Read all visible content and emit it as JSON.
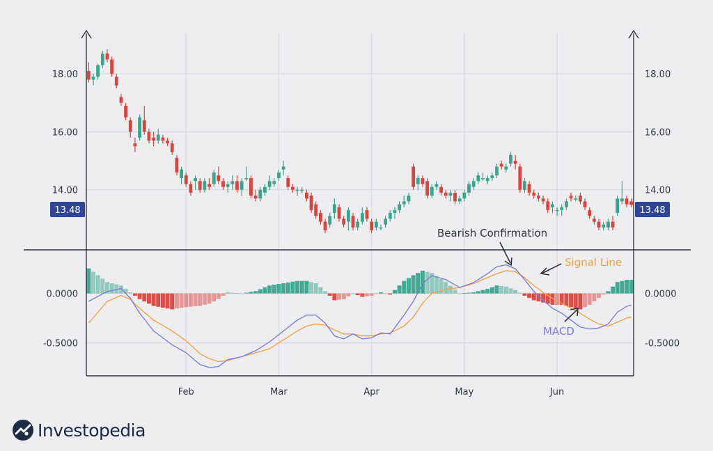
{
  "brand": {
    "name": "Investopedia",
    "logo_icon": "investopedia-logo-icon"
  },
  "chart_data": [
    {
      "type": "candlestick",
      "panel": "price",
      "yticks": [
        14.0,
        16.0,
        18.0
      ],
      "ytick_labels": [
        "14.00",
        "16.00",
        "18.00"
      ],
      "ylim": [
        12.0,
        19.3
      ],
      "last_price_label": "13.48",
      "last_price": 13.48,
      "grid": true,
      "colors": {
        "up": "#3aa48c",
        "down": "#d9443f",
        "price_tag": "#2f4596"
      },
      "x_ticks": [
        "Feb",
        "Mar",
        "Apr",
        "May",
        "Jun"
      ],
      "x_tick_index": [
        21,
        41,
        61,
        81,
        101
      ],
      "candles": [
        [
          18.1,
          18.4,
          17.7,
          17.8
        ],
        [
          17.8,
          18.0,
          17.6,
          17.9
        ],
        [
          17.9,
          18.35,
          17.8,
          18.3
        ],
        [
          18.3,
          18.8,
          18.2,
          18.7
        ],
        [
          18.7,
          18.85,
          18.4,
          18.5
        ],
        [
          18.5,
          18.6,
          17.9,
          18.0
        ],
        [
          17.9,
          18.0,
          17.5,
          17.6
        ],
        [
          17.2,
          17.3,
          16.9,
          17.0
        ],
        [
          16.9,
          17.0,
          16.4,
          16.5
        ],
        [
          16.4,
          16.5,
          15.8,
          16.0
        ],
        [
          15.6,
          15.8,
          15.3,
          15.5
        ],
        [
          15.8,
          16.6,
          15.7,
          16.5
        ],
        [
          16.4,
          16.9,
          15.9,
          16.0
        ],
        [
          16.0,
          16.1,
          15.6,
          15.7
        ],
        [
          15.8,
          16.0,
          15.5,
          15.7
        ],
        [
          15.7,
          16.1,
          15.6,
          15.9
        ],
        [
          15.8,
          15.9,
          15.6,
          15.7
        ],
        [
          15.7,
          15.8,
          15.5,
          15.6
        ],
        [
          15.6,
          15.7,
          15.2,
          15.3
        ],
        [
          15.1,
          15.2,
          14.5,
          14.6
        ],
        [
          14.4,
          14.8,
          14.2,
          14.7
        ],
        [
          14.5,
          14.6,
          14.1,
          14.2
        ],
        [
          14.2,
          14.3,
          13.8,
          13.9
        ],
        [
          14.3,
          14.5,
          14.0,
          14.4
        ],
        [
          14.3,
          14.4,
          13.9,
          14.0
        ],
        [
          14.0,
          14.4,
          13.9,
          14.3
        ],
        [
          14.2,
          14.4,
          14.0,
          14.1
        ],
        [
          14.2,
          14.7,
          14.1,
          14.6
        ],
        [
          14.5,
          14.8,
          14.2,
          14.3
        ],
        [
          14.3,
          14.4,
          14.0,
          14.1
        ],
        [
          14.1,
          14.3,
          13.9,
          14.2
        ],
        [
          14.2,
          14.5,
          14.0,
          14.3
        ],
        [
          14.3,
          14.5,
          13.9,
          14.0
        ],
        [
          14.0,
          14.4,
          13.8,
          14.3
        ],
        [
          14.4,
          14.8,
          14.3,
          14.4
        ],
        [
          14.4,
          14.5,
          13.7,
          13.8
        ],
        [
          13.8,
          14.0,
          13.6,
          13.7
        ],
        [
          13.7,
          14.1,
          13.6,
          14.0
        ],
        [
          13.9,
          14.2,
          13.8,
          14.1
        ],
        [
          14.1,
          14.5,
          14.0,
          14.3
        ],
        [
          14.2,
          14.4,
          14.1,
          14.3
        ],
        [
          14.4,
          14.7,
          14.3,
          14.6
        ],
        [
          14.7,
          15.0,
          14.5,
          14.8
        ],
        [
          14.4,
          14.5,
          14.0,
          14.1
        ],
        [
          14.1,
          14.2,
          13.9,
          14.0
        ],
        [
          14.0,
          14.1,
          13.8,
          14.0
        ],
        [
          14.0,
          14.1,
          13.9,
          14.0
        ],
        [
          13.9,
          14.0,
          13.6,
          13.7
        ],
        [
          13.8,
          13.9,
          13.2,
          13.3
        ],
        [
          13.5,
          13.6,
          13.0,
          13.1
        ],
        [
          13.2,
          13.3,
          12.8,
          12.9
        ],
        [
          12.9,
          13.0,
          12.5,
          12.6
        ],
        [
          12.8,
          13.2,
          12.7,
          13.1
        ],
        [
          13.2,
          13.7,
          13.0,
          13.5
        ],
        [
          13.4,
          13.5,
          12.9,
          13.0
        ],
        [
          13.0,
          13.1,
          12.7,
          12.8
        ],
        [
          12.9,
          13.4,
          12.6,
          13.3
        ],
        [
          13.1,
          13.2,
          12.6,
          12.7
        ],
        [
          12.7,
          13.0,
          12.6,
          12.9
        ],
        [
          12.9,
          13.4,
          12.8,
          13.2
        ],
        [
          13.3,
          13.4,
          12.9,
          13.0
        ],
        [
          12.9,
          13.0,
          12.5,
          12.6
        ],
        [
          12.7,
          13.0,
          12.6,
          12.9
        ],
        [
          12.7,
          12.8,
          12.6,
          12.7
        ],
        [
          12.8,
          13.1,
          12.7,
          13.0
        ],
        [
          13.0,
          13.3,
          12.9,
          13.2
        ],
        [
          13.2,
          13.4,
          13.0,
          13.3
        ],
        [
          13.3,
          13.6,
          13.2,
          13.5
        ],
        [
          13.5,
          13.8,
          13.4,
          13.6
        ],
        [
          13.6,
          13.9,
          13.5,
          13.8
        ],
        [
          14.8,
          14.9,
          14.0,
          14.1
        ],
        [
          14.2,
          14.5,
          14.0,
          14.4
        ],
        [
          14.4,
          14.5,
          14.1,
          14.2
        ],
        [
          14.3,
          14.4,
          13.7,
          13.8
        ],
        [
          13.8,
          14.2,
          13.7,
          14.1
        ],
        [
          14.1,
          14.3,
          14.0,
          14.2
        ],
        [
          14.1,
          14.2,
          13.8,
          13.9
        ],
        [
          13.9,
          14.0,
          13.7,
          13.8
        ],
        [
          13.8,
          14.0,
          13.6,
          13.9
        ],
        [
          13.9,
          14.0,
          13.5,
          13.6
        ],
        [
          13.6,
          13.8,
          13.5,
          13.7
        ],
        [
          13.7,
          14.0,
          13.6,
          13.9
        ],
        [
          13.9,
          14.3,
          13.8,
          14.2
        ],
        [
          14.1,
          14.4,
          14.0,
          14.3
        ],
        [
          14.3,
          14.6,
          14.2,
          14.5
        ],
        [
          14.4,
          14.6,
          14.3,
          14.4
        ],
        [
          14.3,
          14.5,
          14.2,
          14.4
        ],
        [
          14.4,
          14.6,
          14.3,
          14.5
        ],
        [
          14.5,
          14.9,
          14.4,
          14.8
        ],
        [
          14.9,
          15.0,
          14.7,
          14.8
        ],
        [
          14.7,
          14.9,
          14.6,
          14.8
        ],
        [
          14.9,
          15.3,
          14.8,
          15.2
        ],
        [
          15.0,
          15.2,
          14.7,
          14.9
        ],
        [
          14.8,
          14.9,
          13.9,
          14.0
        ],
        [
          14.0,
          14.4,
          13.9,
          14.3
        ],
        [
          14.2,
          14.3,
          13.8,
          13.9
        ],
        [
          13.9,
          14.0,
          13.7,
          13.8
        ],
        [
          13.8,
          13.9,
          13.6,
          13.7
        ],
        [
          13.7,
          13.8,
          13.5,
          13.6
        ],
        [
          13.6,
          13.7,
          13.2,
          13.3
        ],
        [
          13.4,
          13.6,
          13.2,
          13.5
        ],
        [
          13.3,
          13.4,
          13.1,
          13.3
        ],
        [
          13.3,
          13.5,
          13.1,
          13.4
        ],
        [
          13.4,
          13.7,
          13.3,
          13.6
        ],
        [
          13.8,
          13.9,
          13.6,
          13.7
        ],
        [
          13.7,
          13.8,
          13.6,
          13.7
        ],
        [
          13.8,
          13.9,
          13.5,
          13.6
        ],
        [
          13.6,
          13.7,
          13.3,
          13.4
        ],
        [
          13.3,
          13.4,
          13.0,
          13.1
        ],
        [
          13.0,
          13.1,
          12.8,
          12.9
        ],
        [
          12.9,
          13.0,
          12.6,
          12.7
        ],
        [
          12.7,
          12.9,
          12.6,
          12.8
        ],
        [
          12.7,
          13.0,
          12.6,
          12.9
        ],
        [
          12.9,
          13.1,
          12.6,
          12.7
        ],
        [
          13.2,
          13.8,
          13.1,
          13.7
        ],
        [
          13.6,
          14.3,
          13.5,
          13.7
        ],
        [
          13.7,
          13.8,
          13.4,
          13.5
        ],
        [
          13.6,
          13.7,
          13.4,
          13.48
        ]
      ]
    },
    {
      "type": "macd",
      "panel": "indicator",
      "yticks": [
        -0.5,
        0.0
      ],
      "ytick_labels": [
        "-0.5000",
        "0.0000"
      ],
      "ylim": [
        -0.82,
        0.42
      ],
      "colors": {
        "macd": "#7b7fd4",
        "signal": "#f0a24a",
        "hist_pos": "#3aa48c",
        "hist_neg": "#d9443f"
      },
      "annotations": [
        {
          "text": "Bearish Confirmation",
          "at_index": 87,
          "at_value": 0.24
        },
        {
          "text": "Signal Line",
          "at_index": 94,
          "at_value": 0.22
        },
        {
          "text": "MACD",
          "at_index": 104,
          "at_value": -0.18
        }
      ],
      "macd_knots": [
        [
          0,
          -0.08
        ],
        [
          4,
          0.02
        ],
        [
          7,
          0.05
        ],
        [
          9,
          -0.05
        ],
        [
          11,
          -0.2
        ],
        [
          14,
          -0.38
        ],
        [
          18,
          -0.52
        ],
        [
          21,
          -0.6
        ],
        [
          24,
          -0.72
        ],
        [
          26,
          -0.75
        ],
        [
          28,
          -0.74
        ],
        [
          30,
          -0.67
        ],
        [
          33,
          -0.64
        ],
        [
          36,
          -0.58
        ],
        [
          39,
          -0.49
        ],
        [
          42,
          -0.38
        ],
        [
          45,
          -0.27
        ],
        [
          47,
          -0.22
        ],
        [
          49,
          -0.22
        ],
        [
          51,
          -0.3
        ],
        [
          53,
          -0.43
        ],
        [
          55,
          -0.46
        ],
        [
          57,
          -0.41
        ],
        [
          59,
          -0.46
        ],
        [
          61,
          -0.45
        ],
        [
          63,
          -0.4
        ],
        [
          65,
          -0.41
        ],
        [
          68,
          -0.22
        ],
        [
          70,
          -0.08
        ],
        [
          72,
          0.1
        ],
        [
          74,
          0.18
        ],
        [
          77,
          0.14
        ],
        [
          80,
          0.06
        ],
        [
          83,
          0.11
        ],
        [
          86,
          0.2
        ],
        [
          88,
          0.27
        ],
        [
          90,
          0.29
        ],
        [
          92,
          0.25
        ],
        [
          94,
          0.14
        ],
        [
          96,
          0.02
        ],
        [
          98,
          -0.07
        ],
        [
          100,
          -0.15
        ],
        [
          102,
          -0.2
        ],
        [
          104,
          -0.27
        ],
        [
          106,
          -0.34
        ],
        [
          108,
          -0.36
        ],
        [
          110,
          -0.35
        ],
        [
          112,
          -0.31
        ],
        [
          114,
          -0.19
        ],
        [
          116,
          -0.13
        ],
        [
          117,
          -0.12
        ]
      ],
      "signal_knots": [
        [
          0,
          -0.3
        ],
        [
          4,
          -0.08
        ],
        [
          7,
          -0.02
        ],
        [
          9,
          -0.06
        ],
        [
          11,
          -0.15
        ],
        [
          14,
          -0.27
        ],
        [
          18,
          -0.38
        ],
        [
          21,
          -0.48
        ],
        [
          24,
          -0.61
        ],
        [
          26,
          -0.66
        ],
        [
          28,
          -0.69
        ],
        [
          30,
          -0.68
        ],
        [
          33,
          -0.64
        ],
        [
          36,
          -0.6
        ],
        [
          39,
          -0.56
        ],
        [
          42,
          -0.47
        ],
        [
          45,
          -0.38
        ],
        [
          47,
          -0.33
        ],
        [
          49,
          -0.31
        ],
        [
          51,
          -0.32
        ],
        [
          53,
          -0.37
        ],
        [
          55,
          -0.41
        ],
        [
          57,
          -0.41
        ],
        [
          59,
          -0.43
        ],
        [
          61,
          -0.43
        ],
        [
          63,
          -0.41
        ],
        [
          65,
          -0.4
        ],
        [
          68,
          -0.33
        ],
        [
          70,
          -0.24
        ],
        [
          72,
          -0.1
        ],
        [
          74,
          0.0
        ],
        [
          77,
          0.04
        ],
        [
          80,
          0.06
        ],
        [
          83,
          0.1
        ],
        [
          86,
          0.16
        ],
        [
          88,
          0.2
        ],
        [
          90,
          0.23
        ],
        [
          92,
          0.22
        ],
        [
          94,
          0.16
        ],
        [
          96,
          0.08
        ],
        [
          98,
          0.01
        ],
        [
          100,
          -0.05
        ],
        [
          102,
          -0.1
        ],
        [
          104,
          -0.15
        ],
        [
          106,
          -0.2
        ],
        [
          108,
          -0.26
        ],
        [
          110,
          -0.31
        ],
        [
          112,
          -0.33
        ],
        [
          114,
          -0.29
        ],
        [
          116,
          -0.25
        ],
        [
          117,
          -0.24
        ]
      ]
    }
  ]
}
